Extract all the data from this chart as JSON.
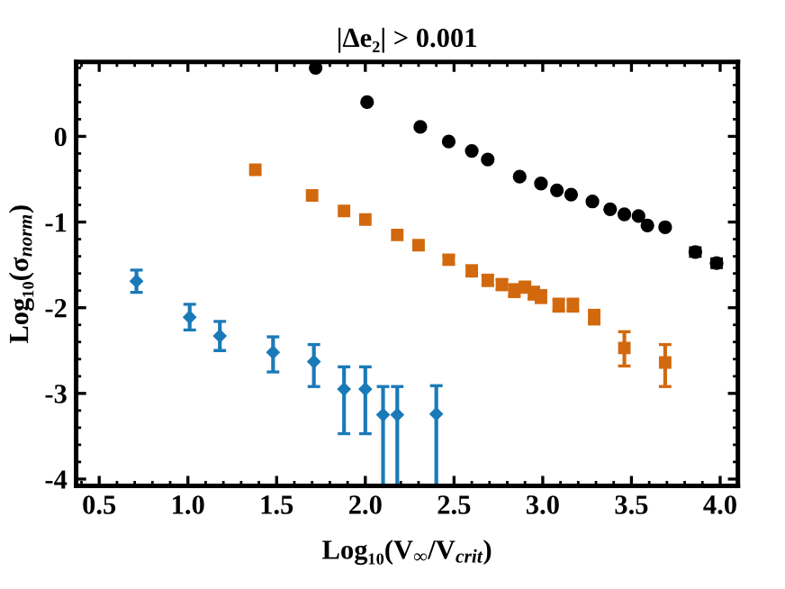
{
  "chart_data": {
    "type": "scatter",
    "title": "|Δe₂| > 0.001",
    "xlabel": "Log₁₀(V$_{∞}$/V$_{crit}$)",
    "ylabel": "Log₁₀(σ$_{norm}$)",
    "xlim": [
      0.37,
      4.1
    ],
    "ylim": [
      -4.08,
      0.87
    ],
    "xticks": [
      {
        "value": 0.5,
        "label": "0.5"
      },
      {
        "value": 1.0,
        "label": "1.0"
      },
      {
        "value": 1.5,
        "label": "1.5"
      },
      {
        "value": 2.0,
        "label": "2.0"
      },
      {
        "value": 2.5,
        "label": "2.5"
      },
      {
        "value": 3.0,
        "label": "3.0"
      },
      {
        "value": 3.5,
        "label": "3.5"
      },
      {
        "value": 4.0,
        "label": "4.0"
      }
    ],
    "yticks": [
      0,
      -1,
      -2,
      -3,
      -4
    ],
    "grid": false,
    "legend": false,
    "series": [
      {
        "color": "#000000",
        "marker": "circle",
        "x": [
          1.72,
          2.01,
          2.31,
          2.47,
          2.6,
          2.69,
          2.87,
          2.99,
          3.08,
          3.16,
          3.28,
          3.38,
          3.46,
          3.54,
          3.59,
          3.69,
          3.86,
          3.98
        ],
        "values": [
          0.8,
          0.4,
          0.11,
          -0.06,
          -0.17,
          -0.27,
          -0.47,
          -0.55,
          -0.63,
          -0.68,
          -0.76,
          -0.85,
          -0.91,
          -0.93,
          -1.04,
          -1.06,
          -1.35,
          -1.48
        ],
        "errors": [
          null,
          null,
          null,
          null,
          null,
          null,
          null,
          null,
          null,
          null,
          null,
          null,
          null,
          null,
          null,
          null,
          0.05,
          0.05
        ]
      },
      {
        "color": "#d2690e",
        "marker": "square",
        "x": [
          1.38,
          1.7,
          1.88,
          2.0,
          2.18,
          2.3,
          2.47,
          2.6,
          2.69,
          2.77,
          2.84,
          2.9,
          2.95,
          2.99,
          3.09,
          3.17,
          3.29,
          3.46,
          3.69
        ],
        "values": [
          -0.39,
          -0.69,
          -0.87,
          -0.97,
          -1.15,
          -1.27,
          -1.44,
          -1.57,
          -1.68,
          -1.73,
          -1.8,
          -1.76,
          -1.83,
          -1.87,
          -1.97,
          -1.97,
          -2.11,
          -2.47,
          -2.64
        ],
        "errors": [
          null,
          null,
          null,
          null,
          null,
          null,
          0.05,
          0.06,
          0.06,
          0.06,
          0.07,
          0.06,
          0.07,
          0.07,
          0.07,
          0.07,
          0.08,
          [
            -2.68,
            -2.28
          ],
          [
            -2.92,
            -2.43
          ]
        ]
      },
      {
        "color": "#1a7ab8",
        "marker": "diamond",
        "x": [
          0.71,
          1.01,
          1.18,
          1.48,
          1.71,
          1.88,
          2.0,
          2.1,
          2.18,
          2.4
        ],
        "values": [
          -1.69,
          -2.11,
          -2.33,
          -2.52,
          -2.63,
          -2.95,
          -2.95,
          -3.25,
          -3.25,
          -3.24
        ],
        "errors": [
          0.13,
          0.15,
          0.17,
          [
            -2.75,
            -2.34
          ],
          [
            -2.92,
            -2.43
          ],
          [
            -3.47,
            -2.69
          ],
          [
            -3.47,
            -2.69
          ],
          [
            -4.08,
            -2.92
          ],
          [
            -4.08,
            -2.92
          ],
          [
            -4.08,
            -2.91
          ]
        ]
      }
    ]
  }
}
